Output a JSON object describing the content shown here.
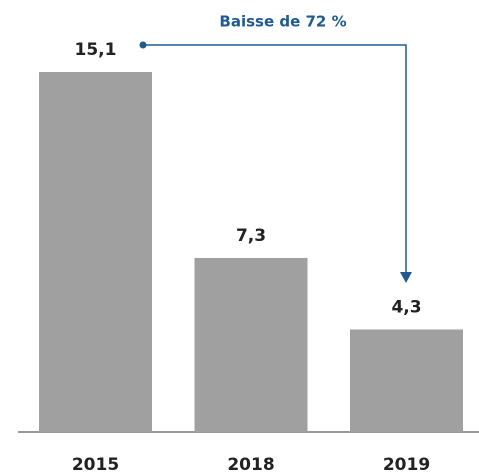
{
  "chart_data": {
    "type": "bar",
    "annotation": "Baisse de 72 %",
    "categories": [
      "2015",
      "2018",
      "2019"
    ],
    "values": [
      15.1,
      7.3,
      4.3
    ],
    "value_labels": [
      "15,1",
      "7,3",
      "4,3"
    ],
    "color": "#a0a0a0"
  }
}
